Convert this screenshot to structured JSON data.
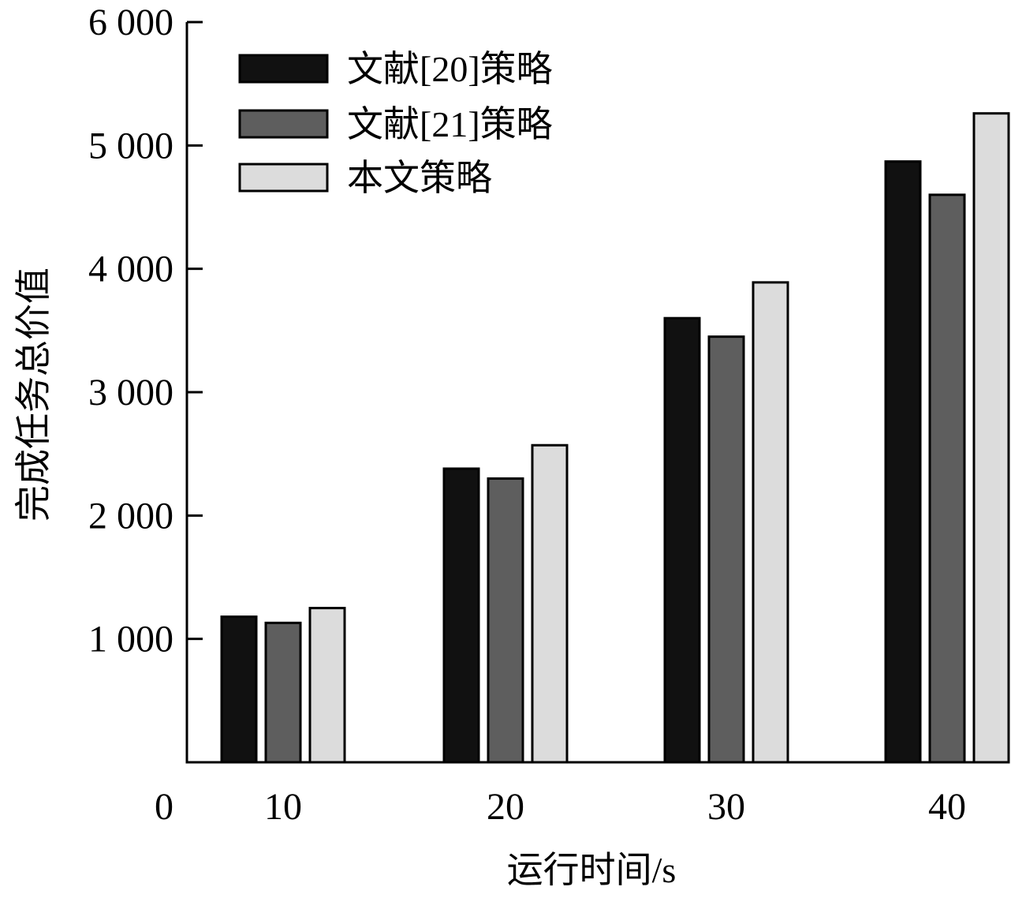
{
  "chart_data": {
    "type": "bar",
    "categories": [
      "10",
      "20",
      "30",
      "40"
    ],
    "series": [
      {
        "name": "文献[20]策略",
        "values": [
          1180,
          2380,
          3600,
          4870
        ],
        "color": "#111111"
      },
      {
        "name": "文献[21]策略",
        "values": [
          1130,
          2300,
          3450,
          4600
        ],
        "color": "#5e5e5e"
      },
      {
        "name": "本文策略",
        "values": [
          1250,
          2570,
          3890,
          5260
        ],
        "color": "#dcdcdc"
      }
    ],
    "title": "",
    "xlabel": "运行时间/s",
    "ylabel": "完成任务总价值",
    "ylim": [
      0,
      6000
    ],
    "yticks": [
      {
        "value": 1000,
        "label": "1 000"
      },
      {
        "value": 2000,
        "label": "2 000"
      },
      {
        "value": 3000,
        "label": "3 000"
      },
      {
        "value": 4000,
        "label": "4 000"
      },
      {
        "value": 5000,
        "label": "5 000"
      },
      {
        "value": 6000,
        "label": "6 000"
      }
    ],
    "origin_label": "0",
    "legend_position": "top-left",
    "grid": false
  }
}
